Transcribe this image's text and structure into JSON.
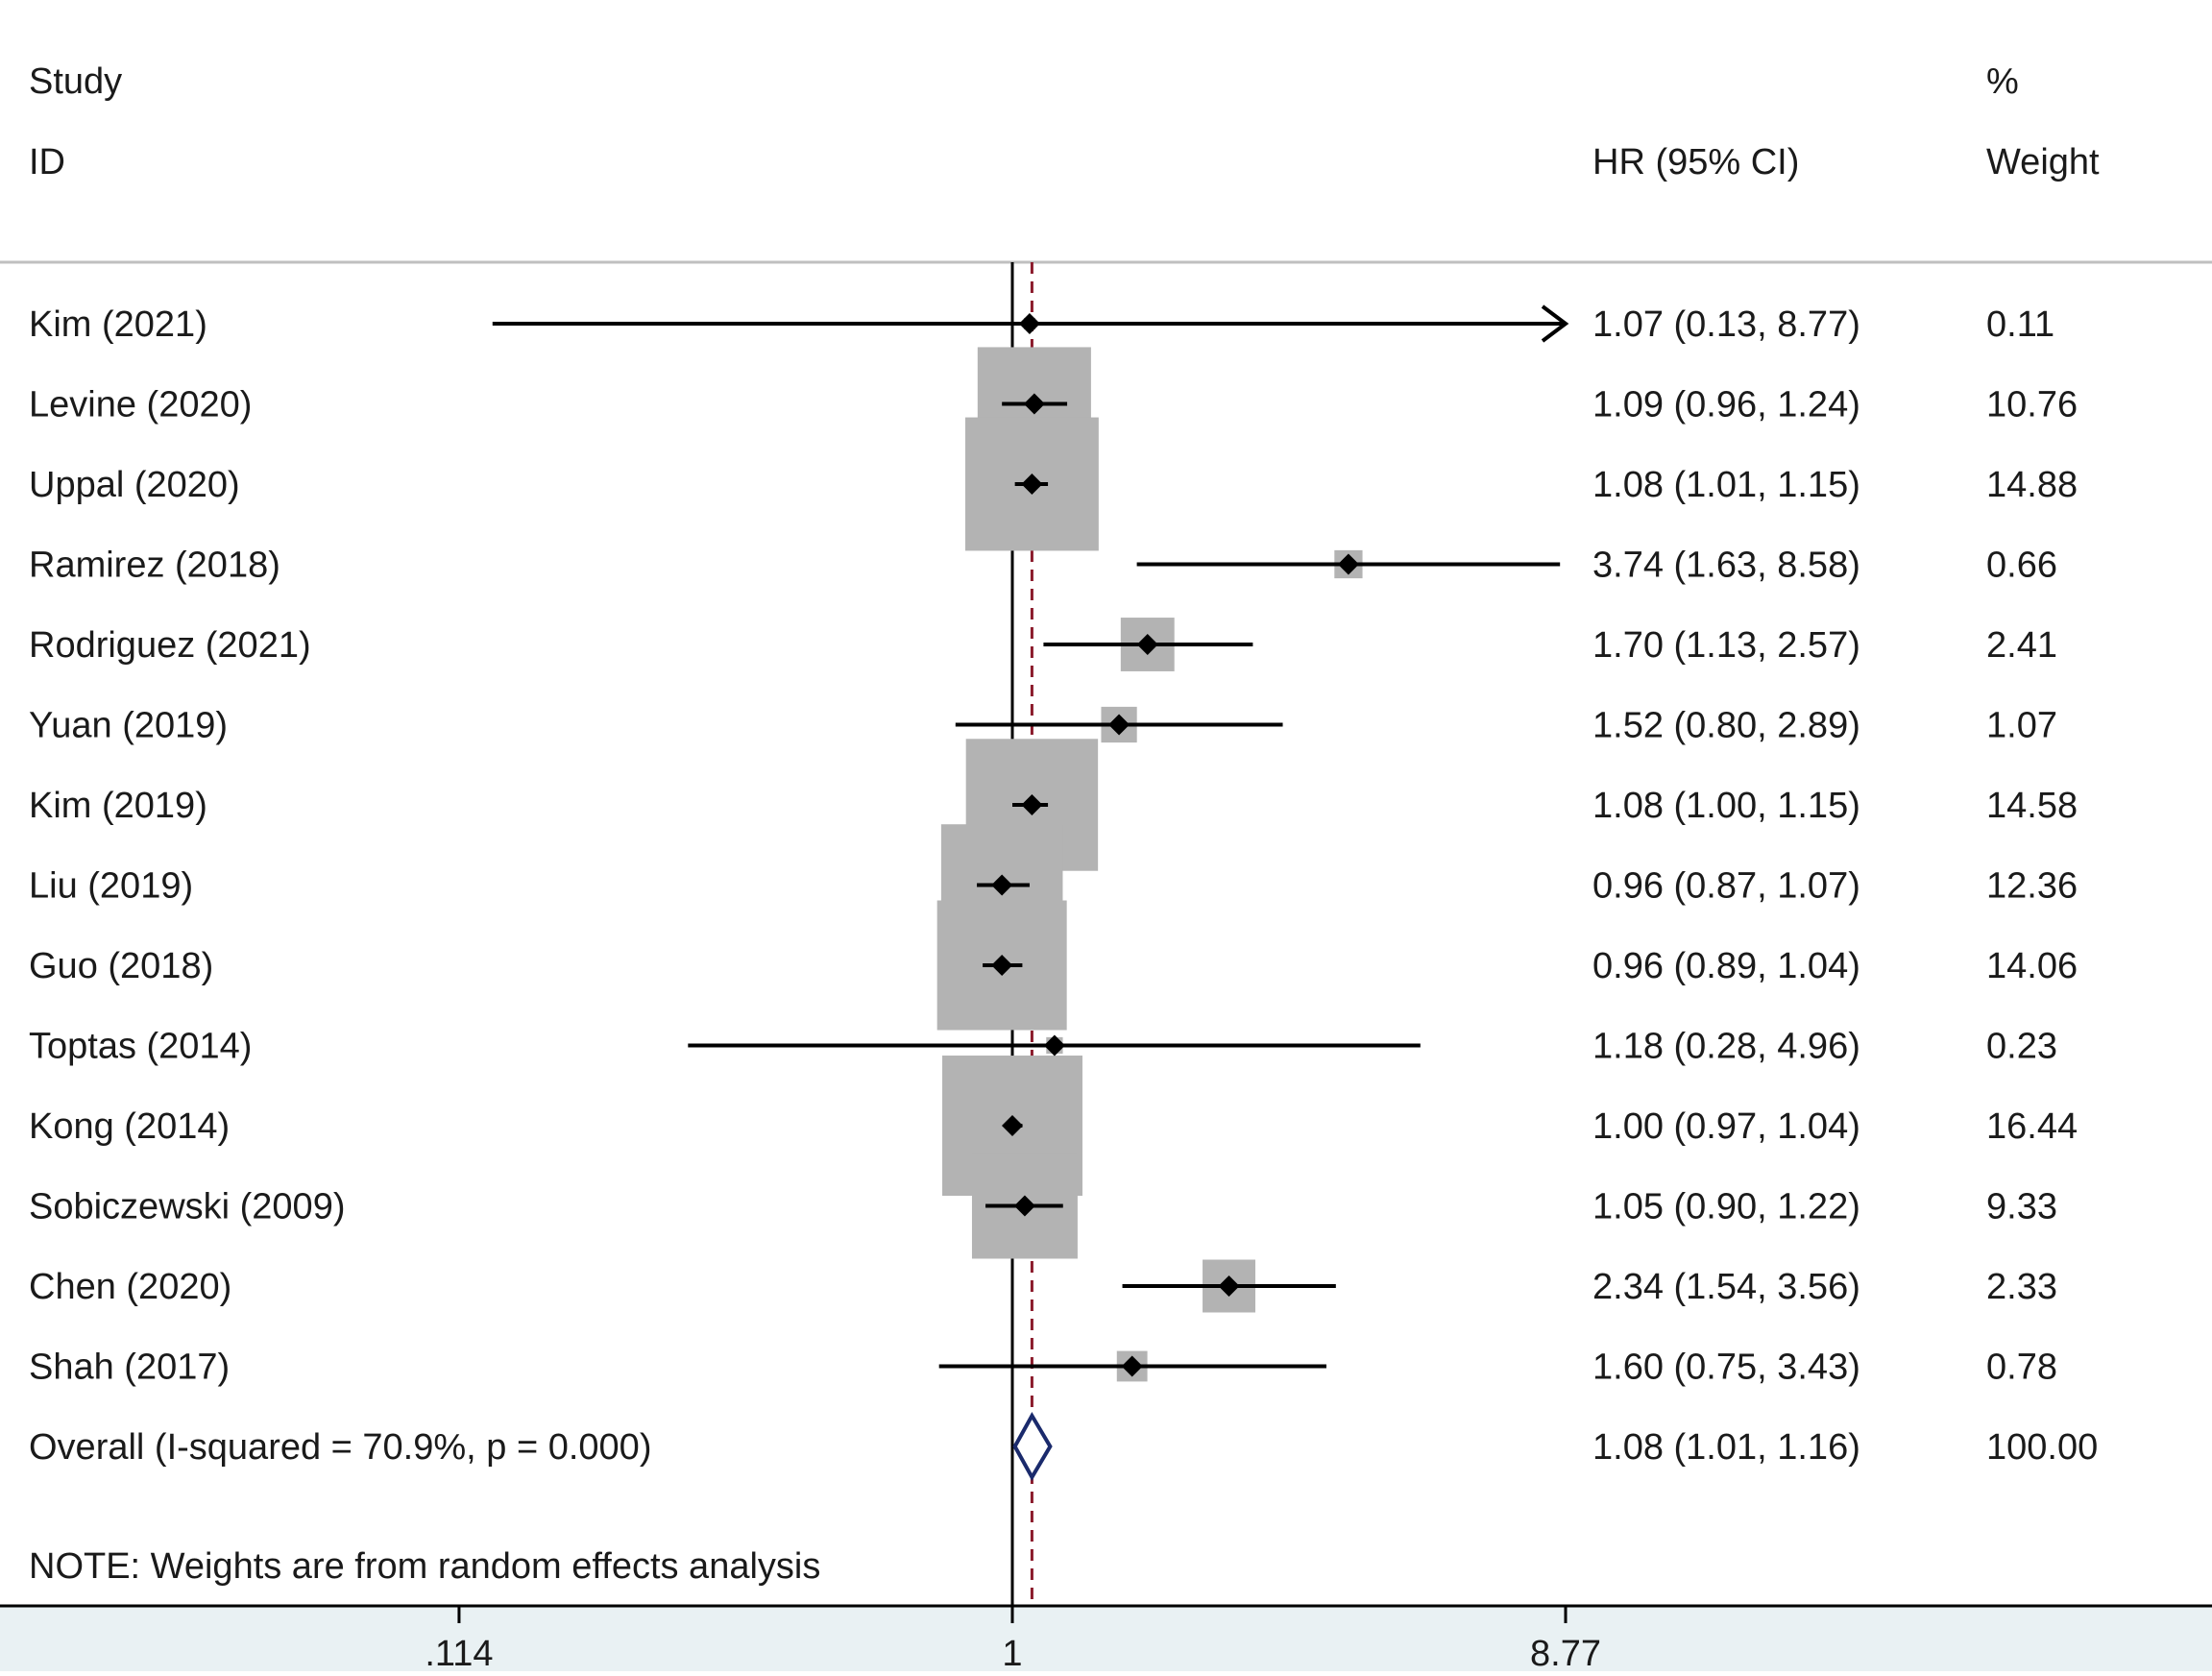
{
  "headers": {
    "study": "Study",
    "id": "ID",
    "hr": "HR (95% CI)",
    "pct": "%",
    "weight": "Weight"
  },
  "note": "NOTE: Weights are from random effects analysis",
  "colors": {
    "box": "#b3b3b3",
    "null_line": "#000000",
    "overall_line": "#8b1a2b",
    "diamond": "#1a2a6c",
    "axis_band": "#e9f1f3",
    "separator": "#bfbfbf"
  },
  "chart_data": {
    "type": "forest",
    "scale": "log",
    "null_value": 1,
    "xlim": [
      0.114,
      8.77
    ],
    "xticks": [
      {
        "value": 0.114,
        "label": ".114"
      },
      {
        "value": 1,
        "label": "1"
      },
      {
        "value": 8.77,
        "label": "8.77"
      }
    ],
    "studies": [
      {
        "name": "Kim (2021)",
        "hr": 1.07,
        "lo": 0.13,
        "hi": 8.77,
        "ci_text": "1.07 (0.13, 8.77)",
        "weight": 0.11,
        "weight_text": "0.11",
        "arrow_right": true
      },
      {
        "name": "Levine (2020)",
        "hr": 1.09,
        "lo": 0.96,
        "hi": 1.24,
        "ci_text": "1.09 (0.96, 1.24)",
        "weight": 10.76,
        "weight_text": "10.76"
      },
      {
        "name": "Uppal (2020)",
        "hr": 1.08,
        "lo": 1.01,
        "hi": 1.15,
        "ci_text": "1.08 (1.01, 1.15)",
        "weight": 14.88,
        "weight_text": "14.88"
      },
      {
        "name": "Ramirez (2018)",
        "hr": 3.74,
        "lo": 1.63,
        "hi": 8.58,
        "ci_text": "3.74 (1.63, 8.58)",
        "weight": 0.66,
        "weight_text": "0.66"
      },
      {
        "name": "Rodriguez (2021)",
        "hr": 1.7,
        "lo": 1.13,
        "hi": 2.57,
        "ci_text": "1.70 (1.13, 2.57)",
        "weight": 2.41,
        "weight_text": "2.41"
      },
      {
        "name": "Yuan (2019)",
        "hr": 1.52,
        "lo": 0.8,
        "hi": 2.89,
        "ci_text": "1.52 (0.80, 2.89)",
        "weight": 1.07,
        "weight_text": "1.07"
      },
      {
        "name": "Kim (2019)",
        "hr": 1.08,
        "lo": 1.0,
        "hi": 1.15,
        "ci_text": "1.08 (1.00, 1.15)",
        "weight": 14.58,
        "weight_text": "14.58"
      },
      {
        "name": "Liu (2019)",
        "hr": 0.96,
        "lo": 0.87,
        "hi": 1.07,
        "ci_text": "0.96 (0.87, 1.07)",
        "weight": 12.36,
        "weight_text": "12.36"
      },
      {
        "name": "Guo (2018)",
        "hr": 0.96,
        "lo": 0.89,
        "hi": 1.04,
        "ci_text": "0.96 (0.89, 1.04)",
        "weight": 14.06,
        "weight_text": "14.06"
      },
      {
        "name": "Toptas (2014)",
        "hr": 1.18,
        "lo": 0.28,
        "hi": 4.96,
        "ci_text": "1.18 (0.28, 4.96)",
        "weight": 0.23,
        "weight_text": "0.23"
      },
      {
        "name": "Kong (2014)",
        "hr": 1.0,
        "lo": 0.97,
        "hi": 1.04,
        "ci_text": "1.00 (0.97, 1.04)",
        "weight": 16.44,
        "weight_text": "16.44"
      },
      {
        "name": "Sobiczewski (2009)",
        "hr": 1.05,
        "lo": 0.9,
        "hi": 1.22,
        "ci_text": "1.05 (0.90, 1.22)",
        "weight": 9.33,
        "weight_text": "9.33"
      },
      {
        "name": "Chen (2020)",
        "hr": 2.34,
        "lo": 1.54,
        "hi": 3.56,
        "ci_text": "2.34 (1.54, 3.56)",
        "weight": 2.33,
        "weight_text": "2.33"
      },
      {
        "name": "Shah (2017)",
        "hr": 1.6,
        "lo": 0.75,
        "hi": 3.43,
        "ci_text": "1.60 (0.75, 3.43)",
        "weight": 0.78,
        "weight_text": "0.78"
      }
    ],
    "overall": {
      "name": "Overall  (I-squared = 70.9%, p = 0.000)",
      "hr": 1.08,
      "lo": 1.01,
      "hi": 1.16,
      "ci_text": "1.08 (1.01, 1.16)",
      "weight_text": "100.00"
    }
  }
}
